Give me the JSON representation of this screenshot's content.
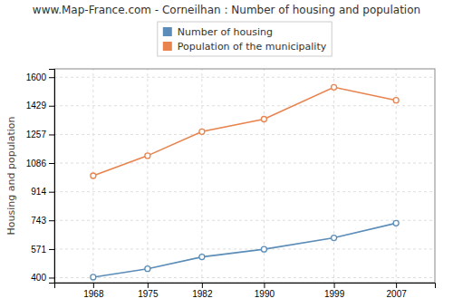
{
  "chart_data": {
    "type": "line",
    "title": "www.Map-France.com - Corneilhan : Number of housing and population",
    "y_label": "Housing and population",
    "x": [
      1968,
      1975,
      1982,
      1990,
      1999,
      2007
    ],
    "series": [
      {
        "name": "Number of housing",
        "color": "#5b8db8",
        "marker": "circle",
        "line_style": "solid",
        "values": [
          403,
          453,
          524,
          570,
          638,
          726
        ]
      },
      {
        "name": "Population of the municipality",
        "color": "#e8834e",
        "marker": "circle",
        "line_style": "solid",
        "values": [
          1010,
          1130,
          1274,
          1349,
          1540,
          1462
        ]
      }
    ],
    "xlim": [
      1963,
      2012
    ],
    "xticks": [
      1968,
      1975,
      1982,
      1990,
      1999,
      2007
    ],
    "ylim": [
      370,
      1650
    ],
    "yticks": [
      400,
      571,
      743,
      914,
      1086,
      1257,
      1429,
      1600
    ],
    "grid": true,
    "legend": "top"
  }
}
